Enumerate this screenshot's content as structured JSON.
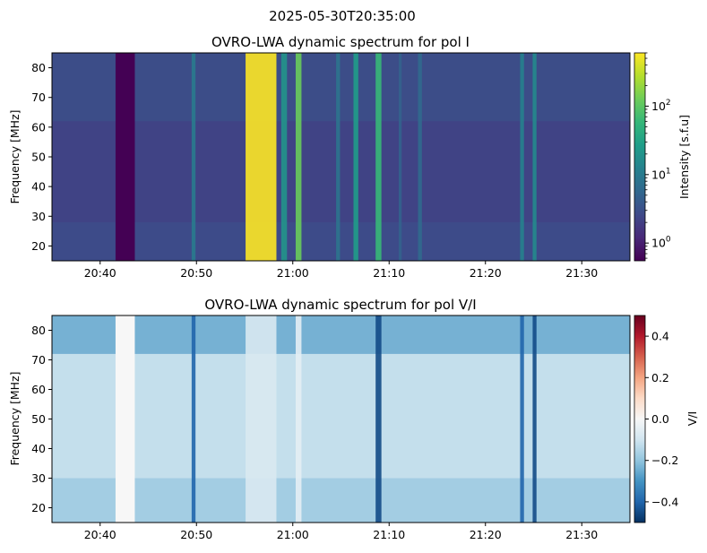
{
  "figure": {
    "suptitle": "2025-05-30T20:35:00"
  },
  "chart_data": [
    {
      "type": "heatmap",
      "title": "OVRO-LWA dynamic spectrum for pol I",
      "xlabel": "",
      "ylabel": "Frequency [MHz]",
      "x_ticks": [
        "20:40",
        "20:50",
        "21:00",
        "21:10",
        "21:20",
        "21:30"
      ],
      "x_tick_minutes": [
        5,
        15,
        25,
        35,
        45,
        55
      ],
      "x_range_minutes": [
        0,
        60
      ],
      "y_ticks": [
        20,
        30,
        40,
        50,
        60,
        70,
        80
      ],
      "ylim": [
        15,
        85
      ],
      "colorbar": {
        "label": "Intensity [s.f.u]",
        "scale": "log",
        "colormap": "viridis",
        "range": [
          0.55,
          600
        ],
        "ticks": [
          {
            "base": "10",
            "exp": "0",
            "value": 1
          },
          {
            "base": "10",
            "exp": "1",
            "value": 10
          },
          {
            "base": "10",
            "exp": "2",
            "value": 100
          }
        ]
      },
      "features": [
        {
          "kind": "gap",
          "start": 6.6,
          "end": 8.6,
          "value": 0.55
        },
        {
          "kind": "burst",
          "start": 20.1,
          "end": 23.3,
          "value": 800
        },
        {
          "kind": "burst",
          "start": 25.3,
          "end": 25.9,
          "value": 120
        },
        {
          "kind": "burst",
          "start": 33.6,
          "end": 34.2,
          "value": 60
        },
        {
          "kind": "burst",
          "start": 31.3,
          "end": 31.8,
          "value": 25
        },
        {
          "kind": "burst",
          "start": 23.8,
          "end": 24.4,
          "value": 20
        },
        {
          "kind": "burst",
          "start": 14.5,
          "end": 14.9,
          "value": 10
        },
        {
          "kind": "burst",
          "start": 49.9,
          "end": 50.3,
          "value": 15
        },
        {
          "kind": "burst",
          "start": 48.6,
          "end": 49.0,
          "value": 12
        },
        {
          "kind": "burst",
          "start": 29.5,
          "end": 29.9,
          "value": 8
        },
        {
          "kind": "burst",
          "start": 38.0,
          "end": 38.4,
          "value": 6
        },
        {
          "kind": "burst",
          "start": 36.0,
          "end": 36.3,
          "value": 5
        }
      ]
    },
    {
      "type": "heatmap",
      "title": "OVRO-LWA dynamic spectrum for pol V/I",
      "xlabel": "",
      "ylabel": "Frequency [MHz]",
      "x_ticks": [
        "20:40",
        "20:50",
        "21:00",
        "21:10",
        "21:20",
        "21:30"
      ],
      "x_tick_minutes": [
        5,
        15,
        25,
        35,
        45,
        55
      ],
      "x_range_minutes": [
        0,
        60
      ],
      "y_ticks": [
        20,
        30,
        40,
        50,
        60,
        70,
        80
      ],
      "ylim": [
        15,
        85
      ],
      "colorbar": {
        "label": "V/I",
        "scale": "linear",
        "colormap": "RdBu_r",
        "range": [
          -0.5,
          0.5
        ],
        "ticks": [
          {
            "label": "0.4",
            "value": 0.4
          },
          {
            "label": "0.2",
            "value": 0.2
          },
          {
            "label": "0.0",
            "value": 0.0
          },
          {
            "label": "−0.2",
            "value": -0.2
          },
          {
            "label": "−0.4",
            "value": -0.4
          }
        ]
      },
      "features": [
        {
          "kind": "gap",
          "start": 6.6,
          "end": 8.6,
          "value": 0.0
        },
        {
          "kind": "burst",
          "start": 20.1,
          "end": 23.3,
          "value": -0.08
        },
        {
          "kind": "burst",
          "start": 25.3,
          "end": 25.9,
          "value": -0.05
        },
        {
          "kind": "burst",
          "start": 33.6,
          "end": 34.2,
          "value": -0.45
        },
        {
          "kind": "burst",
          "start": 49.9,
          "end": 50.3,
          "value": -0.45
        },
        {
          "kind": "burst",
          "start": 48.6,
          "end": 49.0,
          "value": -0.4
        },
        {
          "kind": "burst",
          "start": 14.5,
          "end": 14.9,
          "value": -0.4
        }
      ]
    }
  ]
}
